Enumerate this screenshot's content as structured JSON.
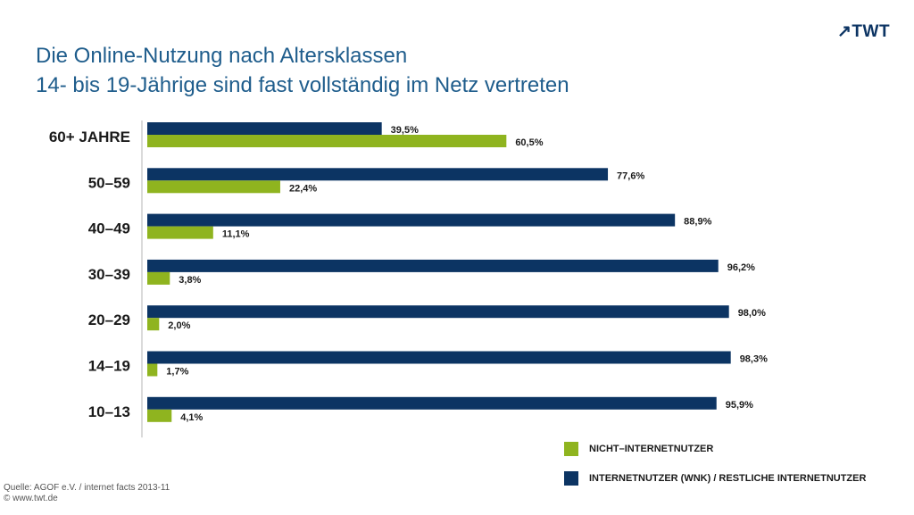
{
  "logo": {
    "text": "TWT",
    "arrow": "↗"
  },
  "title": {
    "line1": "Die Online-Nutzung nach Altersklassen",
    "line2": "14- bis 19-Jährige sind fast vollständig im Netz vertreten"
  },
  "colors": {
    "nicht": "#8fb41f",
    "internet": "#0c3463",
    "title": "#1f5d8c"
  },
  "chart_data": {
    "type": "bar",
    "orientation": "horizontal",
    "categories": [
      "60+ JAHRE",
      "50–59",
      "40–49",
      "30–39",
      "20–29",
      "14–19",
      "10–13"
    ],
    "series": [
      {
        "name": "INTERNETNUTZER (WNK) / RESTLICHE INTERNETNUTZER",
        "color": "#0c3463",
        "values": [
          39.5,
          77.6,
          88.9,
          96.2,
          98.0,
          98.3,
          95.9
        ],
        "labels": [
          "39,5%",
          "77,6%",
          "88,9%",
          "96,2%",
          "98,0%",
          "98,3%",
          "95,9%"
        ]
      },
      {
        "name": "NICHT–INTERNETNUTZER",
        "color": "#8fb41f",
        "values": [
          60.5,
          22.4,
          11.1,
          3.8,
          2.0,
          1.7,
          4.1
        ],
        "labels": [
          "60,5%",
          "22,4%",
          "11,1%",
          "3,8%",
          "2,0%",
          "1,7%",
          "4,1%"
        ]
      }
    ],
    "xlim": [
      0,
      100
    ],
    "legend_position": "bottom-right"
  },
  "legend": [
    {
      "label": "NICHT–INTERNETNUTZER",
      "color": "#8fb41f"
    },
    {
      "label": "INTERNETNUTZER (WNK) / RESTLICHE INTERNETNUTZER",
      "color": "#0c3463"
    }
  ],
  "source": {
    "line1": "Quelle: AGOF e.V. / internet facts 2013-11",
    "line2": "© www.twt.de"
  }
}
